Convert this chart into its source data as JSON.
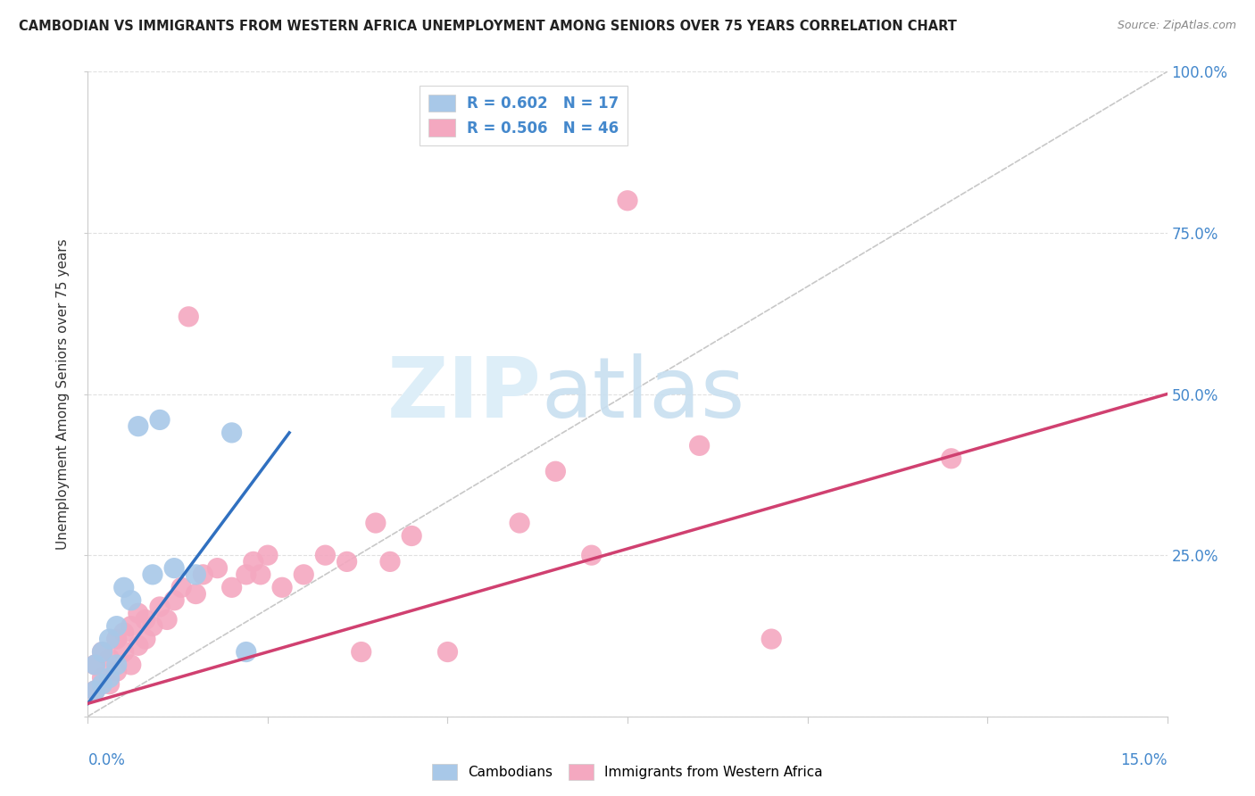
{
  "title": "CAMBODIAN VS IMMIGRANTS FROM WESTERN AFRICA UNEMPLOYMENT AMONG SENIORS OVER 75 YEARS CORRELATION CHART",
  "source": "Source: ZipAtlas.com",
  "ylabel": "Unemployment Among Seniors over 75 years",
  "xlim": [
    0,
    0.15
  ],
  "ylim": [
    0,
    1.0
  ],
  "legend_r1": "R = 0.602   N = 17",
  "legend_r2": "R = 0.506   N = 46",
  "cambodian_color": "#a8c8e8",
  "western_africa_color": "#f4a8c0",
  "cambodian_line_color": "#3070c0",
  "western_africa_line_color": "#d04070",
  "diagonal_color": "#c8c8c8",
  "watermark_zip": "ZIP",
  "watermark_atlas": "atlas",
  "cambodian_x": [
    0.001,
    0.001,
    0.002,
    0.002,
    0.003,
    0.003,
    0.004,
    0.004,
    0.005,
    0.006,
    0.007,
    0.009,
    0.01,
    0.012,
    0.015,
    0.02,
    0.022
  ],
  "cambodian_y": [
    0.04,
    0.08,
    0.05,
    0.1,
    0.06,
    0.12,
    0.08,
    0.14,
    0.2,
    0.18,
    0.45,
    0.22,
    0.46,
    0.23,
    0.22,
    0.44,
    0.1
  ],
  "western_africa_x": [
    0.001,
    0.001,
    0.002,
    0.002,
    0.003,
    0.003,
    0.004,
    0.004,
    0.005,
    0.005,
    0.006,
    0.006,
    0.007,
    0.007,
    0.008,
    0.008,
    0.009,
    0.01,
    0.011,
    0.012,
    0.013,
    0.014,
    0.015,
    0.016,
    0.018,
    0.02,
    0.022,
    0.023,
    0.024,
    0.025,
    0.027,
    0.03,
    0.033,
    0.036,
    0.038,
    0.04,
    0.042,
    0.045,
    0.05,
    0.06,
    0.065,
    0.07,
    0.075,
    0.085,
    0.095,
    0.12
  ],
  "western_africa_y": [
    0.04,
    0.08,
    0.06,
    0.1,
    0.05,
    0.09,
    0.07,
    0.12,
    0.1,
    0.13,
    0.08,
    0.14,
    0.11,
    0.16,
    0.12,
    0.15,
    0.14,
    0.17,
    0.15,
    0.18,
    0.2,
    0.62,
    0.19,
    0.22,
    0.23,
    0.2,
    0.22,
    0.24,
    0.22,
    0.25,
    0.2,
    0.22,
    0.25,
    0.24,
    0.1,
    0.3,
    0.24,
    0.28,
    0.1,
    0.3,
    0.38,
    0.25,
    0.8,
    0.42,
    0.12,
    0.4
  ],
  "blue_line_x": [
    0.0,
    0.028
  ],
  "blue_line_y": [
    0.02,
    0.44
  ],
  "pink_line_x": [
    0.0,
    0.15
  ],
  "pink_line_y": [
    0.02,
    0.5
  ]
}
